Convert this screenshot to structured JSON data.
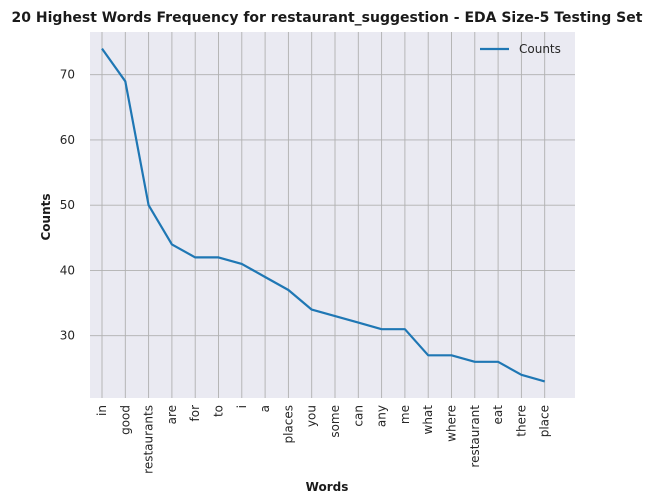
{
  "chart_data": {
    "type": "line",
    "title": "20 Highest Words Frequency for restaurant_suggestion - EDA Size-5 Testing Set",
    "xlabel": "Words",
    "ylabel": "Counts",
    "categories": [
      "in",
      "good",
      "restaurants",
      "are",
      "for",
      "to",
      "i",
      "a",
      "places",
      "you",
      "some",
      "can",
      "any",
      "me",
      "what",
      "where",
      "restaurant",
      "eat",
      "there",
      "place"
    ],
    "series": [
      {
        "name": "Counts",
        "values": [
          74,
          69,
          50,
          44,
          42,
          42,
          41,
          39,
          37,
          34,
          33,
          32,
          31,
          31,
          27,
          27,
          26,
          26,
          24,
          23
        ]
      }
    ],
    "ylim": [
      20.45,
      76.55
    ],
    "yticks": [
      30,
      40,
      50,
      60,
      70
    ],
    "grid": true,
    "legend": "top-right",
    "colors": {
      "line": "#1f77b4",
      "plot_bg": "#eaeaf2",
      "grid": "#b0b0b0"
    }
  }
}
